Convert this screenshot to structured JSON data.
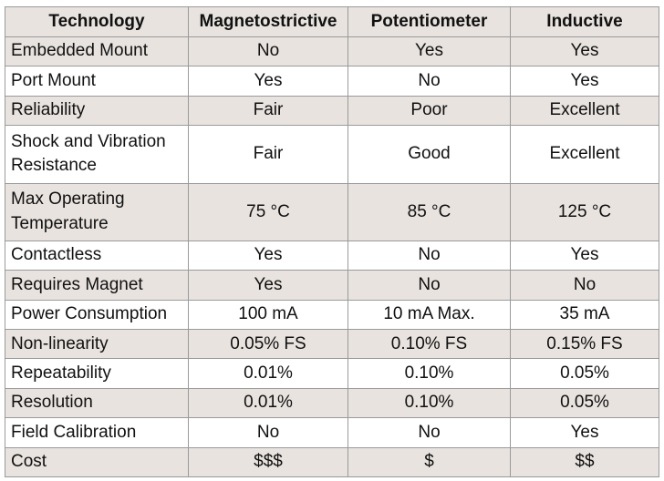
{
  "headers": [
    "Technology",
    "Magnetostrictive",
    "Potentiometer",
    "Inductive"
  ],
  "rows": [
    {
      "label": "Embedded Mount",
      "values": [
        "No",
        "Yes",
        "Yes"
      ]
    },
    {
      "label": "Port Mount",
      "values": [
        "Yes",
        "No",
        "Yes"
      ]
    },
    {
      "label": "Reliability",
      "values": [
        "Fair",
        "Poor",
        "Excellent"
      ]
    },
    {
      "label": "Shock and Vibration Resistance",
      "values": [
        "Fair",
        "Good",
        "Excellent"
      ]
    },
    {
      "label": "Max Operating Temperature",
      "values": [
        "75 °C",
        "85 °C",
        "125 °C"
      ]
    },
    {
      "label": "Contactless",
      "values": [
        "Yes",
        "No",
        "Yes"
      ]
    },
    {
      "label": "Requires Magnet",
      "values": [
        "Yes",
        "No",
        "No"
      ]
    },
    {
      "label": "Power Consumption",
      "values": [
        "100 mA",
        "10 mA Max.",
        "35 mA"
      ]
    },
    {
      "label": "Non-linearity",
      "values": [
        "0.05% FS",
        "0.10% FS",
        "0.15% FS"
      ]
    },
    {
      "label": "Repeatability",
      "values": [
        "0.01%",
        "0.10%",
        "0.05%"
      ]
    },
    {
      "label": "Resolution",
      "values": [
        "0.01%",
        "0.10%",
        "0.05%"
      ]
    },
    {
      "label": "Field Calibration",
      "values": [
        "No",
        "No",
        "Yes"
      ]
    },
    {
      "label": "Cost",
      "values": [
        "$$$",
        "$",
        "$$"
      ]
    }
  ],
  "colors": {
    "shaded_row": "#e8e3df",
    "plain_row": "#ffffff",
    "border": "#9a9a9a"
  }
}
